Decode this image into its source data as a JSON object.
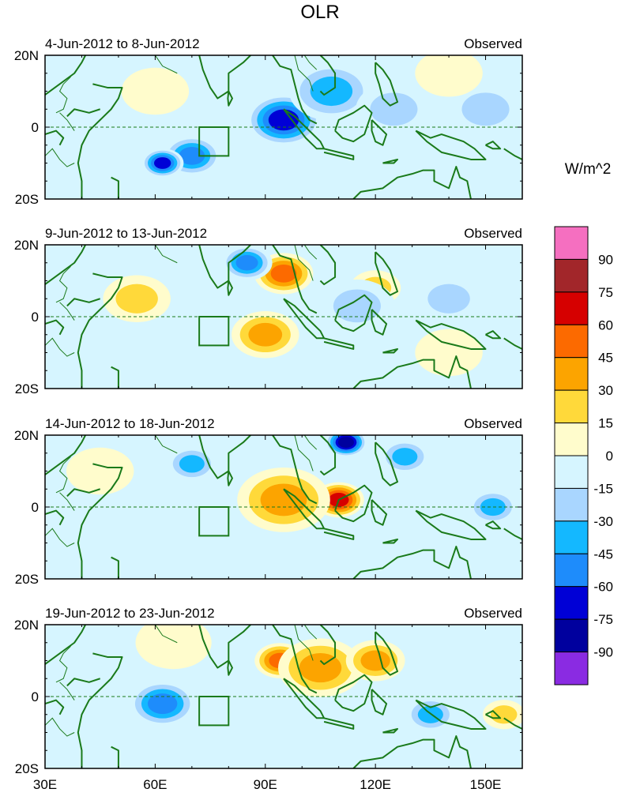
{
  "chart_data": {
    "type": "heatmap",
    "title": "OLR",
    "variable": "OLR",
    "units": "W/m^2",
    "colorbar": {
      "labels": [
        "90",
        "75",
        "60",
        "45",
        "30",
        "15",
        "0",
        "-15",
        "-30",
        "-45",
        "-60",
        "-75",
        "-90"
      ],
      "levels": [
        90,
        75,
        60,
        45,
        30,
        15,
        0,
        -15,
        -30,
        -45,
        -60,
        -75,
        -90
      ],
      "colors": [
        "#f56fc0",
        "#a2262a",
        "#d60000",
        "#fc6a00",
        "#fca400",
        "#ffd93a",
        "#fffccc",
        "#d6f5ff",
        "#a9d6ff",
        "#14b8ff",
        "#1e8cfb",
        "#0000d6",
        "#00009e",
        "#8a2be2"
      ]
    },
    "x_axis": {
      "tick_labels": [
        "30E",
        "60E",
        "90E",
        "120E",
        "150E"
      ],
      "tick_values": [
        30,
        60,
        90,
        120,
        150
      ],
      "range": [
        30,
        160
      ]
    },
    "y_axis": {
      "tick_labels": [
        "20N",
        "0",
        "20S"
      ],
      "tick_values": [
        20,
        0,
        -20
      ],
      "range": [
        -20,
        20
      ]
    },
    "box_region": {
      "lon": [
        72,
        80
      ],
      "lat": [
        -8,
        0
      ]
    },
    "panels": [
      {
        "period": "4-Jun-2012 to 8-Jun-2012",
        "label": "Observed",
        "features": [
          {
            "lon": 70,
            "lat": -8,
            "value": -60,
            "r": 7
          },
          {
            "lon": 62,
            "lat": -10,
            "value": -75,
            "r": 5
          },
          {
            "lon": 95,
            "lat": 2,
            "value": -75,
            "r": 9
          },
          {
            "lon": 108,
            "lat": 10,
            "value": -45,
            "r": 10
          },
          {
            "lon": 125,
            "lat": 5,
            "value": -30,
            "r": 9
          },
          {
            "lon": 150,
            "lat": 5,
            "value": -30,
            "r": 9
          },
          {
            "lon": 60,
            "lat": 10,
            "value": 15,
            "r": 8
          },
          {
            "lon": 140,
            "lat": 15,
            "value": 15,
            "r": 8
          }
        ]
      },
      {
        "period": "9-Jun-2012 to 13-Jun-2012",
        "label": "Observed",
        "features": [
          {
            "lon": 95,
            "lat": 12,
            "value": 60,
            "r": 7
          },
          {
            "lon": 90,
            "lat": -5,
            "value": 45,
            "r": 8
          },
          {
            "lon": 55,
            "lat": 5,
            "value": 30,
            "r": 8
          },
          {
            "lon": 120,
            "lat": 8,
            "value": 30,
            "r": 6
          },
          {
            "lon": 85,
            "lat": 15,
            "value": -60,
            "r": 6
          },
          {
            "lon": 115,
            "lat": 3,
            "value": -30,
            "r": 9
          },
          {
            "lon": 140,
            "lat": 5,
            "value": -30,
            "r": 8
          },
          {
            "lon": 140,
            "lat": -10,
            "value": 15,
            "r": 8
          }
        ]
      },
      {
        "period": "14-Jun-2012 to 18-Jun-2012",
        "label": "Observed",
        "features": [
          {
            "lon": 110,
            "lat": 2,
            "value": 75,
            "r": 6
          },
          {
            "lon": 95,
            "lat": 2,
            "value": 45,
            "r": 11
          },
          {
            "lon": 112,
            "lat": 18,
            "value": -90,
            "r": 5
          },
          {
            "lon": 70,
            "lat": 12,
            "value": -45,
            "r": 6
          },
          {
            "lon": 128,
            "lat": 14,
            "value": -45,
            "r": 6
          },
          {
            "lon": 152,
            "lat": 0,
            "value": -45,
            "r": 6
          },
          {
            "lon": 45,
            "lat": 10,
            "value": 15,
            "r": 8
          }
        ]
      },
      {
        "period": "19-Jun-2012 to 23-Jun-2012",
        "label": "Observed",
        "features": [
          {
            "lon": 94,
            "lat": 10,
            "value": 60,
            "r": 6
          },
          {
            "lon": 105,
            "lat": 8,
            "value": 45,
            "r": 10
          },
          {
            "lon": 120,
            "lat": 10,
            "value": 45,
            "r": 7
          },
          {
            "lon": 62,
            "lat": -2,
            "value": -60,
            "r": 8
          },
          {
            "lon": 135,
            "lat": -5,
            "value": -45,
            "r": 6
          },
          {
            "lon": 155,
            "lat": -5,
            "value": 30,
            "r": 5
          },
          {
            "lon": 65,
            "lat": 15,
            "value": 15,
            "r": 9
          }
        ]
      }
    ]
  }
}
